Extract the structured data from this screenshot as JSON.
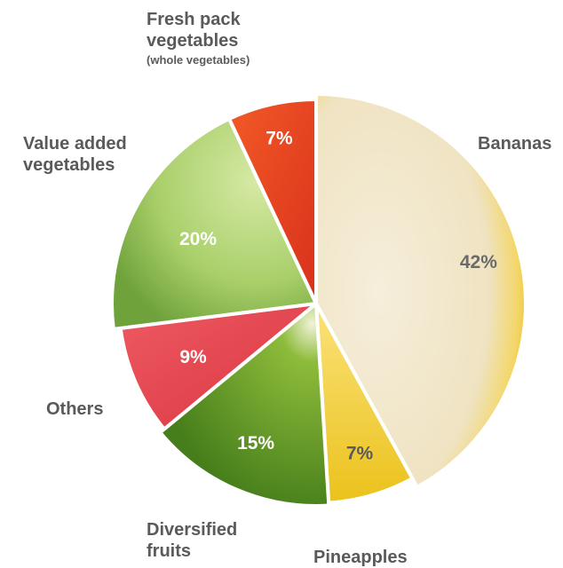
{
  "chart_data": {
    "type": "pie",
    "slices": [
      {
        "label": "Bananas",
        "value_text": "42%",
        "value": 42,
        "color": "#F2CF45"
      },
      {
        "label": "Pineapples",
        "value_text": "7%",
        "value": 7,
        "color": "#F4D13A"
      },
      {
        "label": "Diversified fruits",
        "value_text": "15%",
        "value": 15,
        "color": "#5C9B24"
      },
      {
        "label": "Others",
        "value_text": "9%",
        "value": 9,
        "color": "#E8474F"
      },
      {
        "label": "Value added vegetables",
        "value_text": "20%",
        "value": 20,
        "color": "#86B84A"
      },
      {
        "label": "Fresh pack vegetables",
        "sublabel": "(whole vegetables)",
        "value_text": "7%",
        "value": 7,
        "color": "#EE4A22"
      }
    ]
  },
  "labels": {
    "fresh_line1": "Fresh pack",
    "fresh_line2": "vegetables",
    "fresh_sub": "(whole vegetables)",
    "value_line1": "Value added",
    "value_line2": "vegetables",
    "bananas": "Bananas",
    "others": "Others",
    "diversified_line1": "Diversified",
    "diversified_line2": "fruits",
    "pineapples": "Pineapples"
  }
}
